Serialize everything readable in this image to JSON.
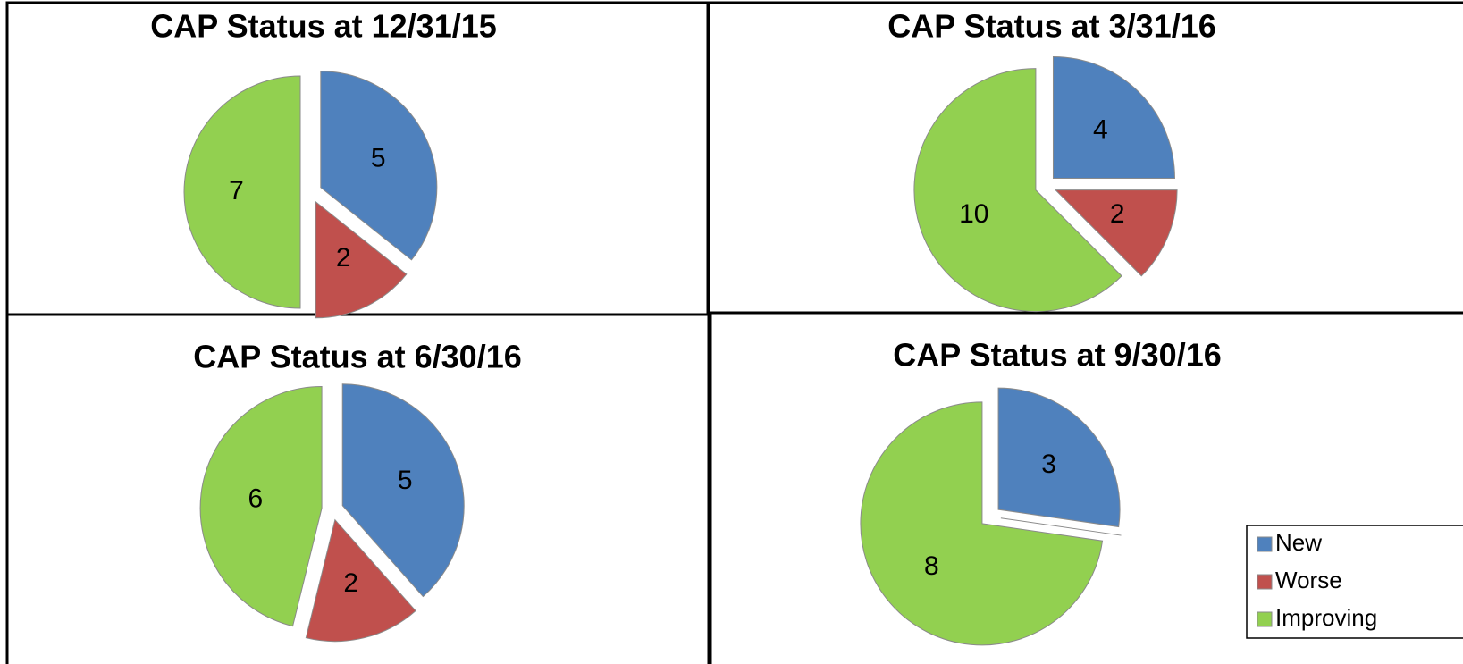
{
  "chart_data": [
    {
      "type": "pie",
      "title": "CAP Status at 12/31/15",
      "categories": [
        "New",
        "Worse",
        "Improving"
      ],
      "values": [
        5,
        2,
        7
      ],
      "colors": [
        "#4f81bd",
        "#c0504d",
        "#92d050"
      ]
    },
    {
      "type": "pie",
      "title": "CAP Status at 3/31/16",
      "categories": [
        "New",
        "Worse",
        "Improving"
      ],
      "values": [
        4,
        2,
        10
      ],
      "colors": [
        "#4f81bd",
        "#c0504d",
        "#92d050"
      ]
    },
    {
      "type": "pie",
      "title": "CAP Status at 6/30/16",
      "categories": [
        "New",
        "Worse",
        "Improving"
      ],
      "values": [
        5,
        2,
        6
      ],
      "colors": [
        "#4f81bd",
        "#c0504d",
        "#92d050"
      ]
    },
    {
      "type": "pie",
      "title": "CAP Status at 9/30/16",
      "categories": [
        "New",
        "Worse",
        "Improving"
      ],
      "values": [
        3,
        0,
        8
      ],
      "colors": [
        "#4f81bd",
        "#c0504d",
        "#92d050"
      ],
      "legend": "bottom-right"
    }
  ]
}
